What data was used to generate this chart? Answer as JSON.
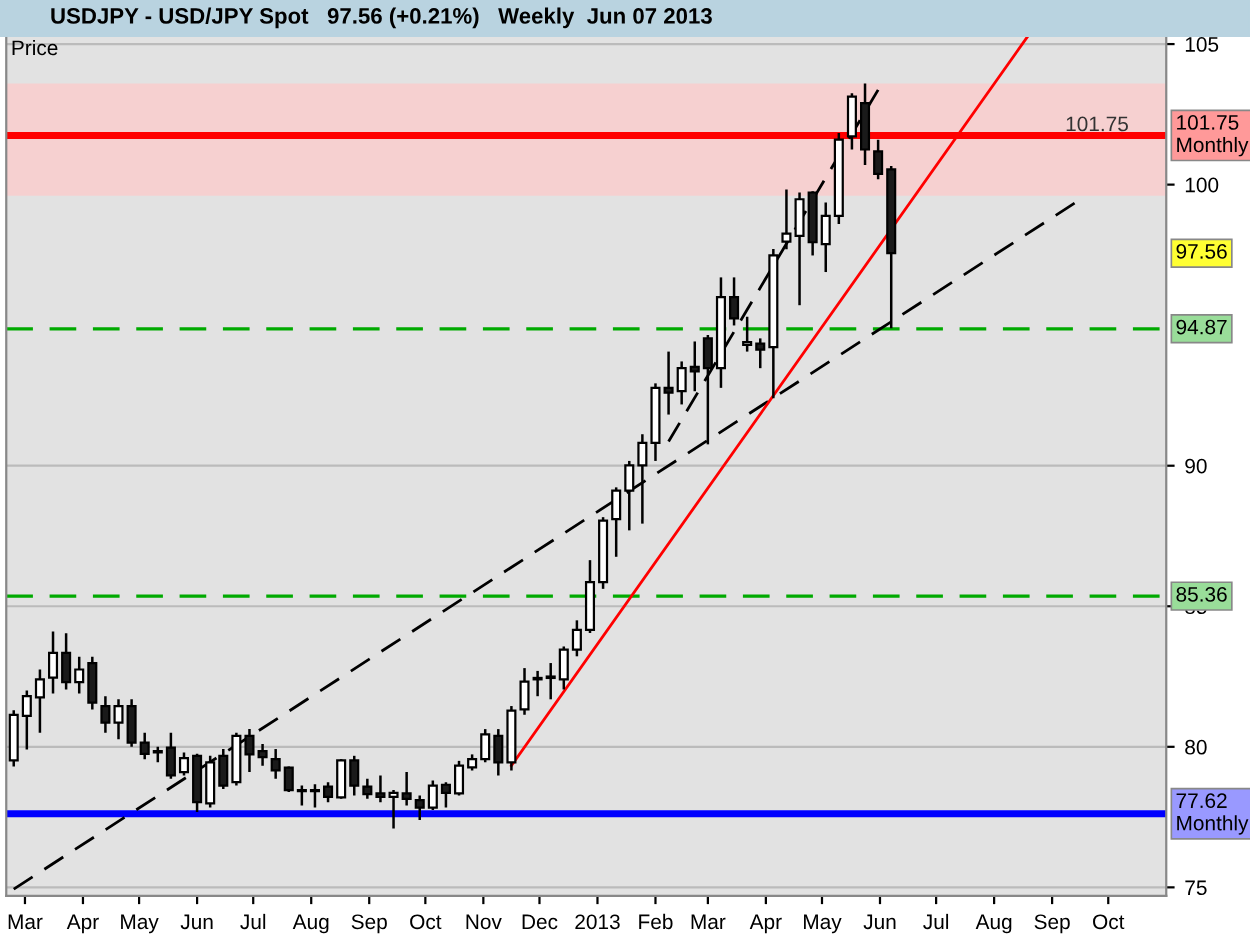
{
  "chart_data": {
    "type": "candlestick",
    "title": "USDJPY - USD/JPY Spot   97.56 (+0.21%)   Weekly  Jun 07 2013",
    "ylabel": "Price",
    "x": [
      "2012-02-24",
      "2012-03-02",
      "2012-03-09",
      "2012-03-16",
      "2012-03-23",
      "2012-03-30",
      "2012-04-06",
      "2012-04-13",
      "2012-04-20",
      "2012-04-27",
      "2012-05-04",
      "2012-05-11",
      "2012-05-18",
      "2012-05-25",
      "2012-06-01",
      "2012-06-08",
      "2012-06-15",
      "2012-06-22",
      "2012-06-29",
      "2012-07-06",
      "2012-07-13",
      "2012-07-20",
      "2012-07-27",
      "2012-08-03",
      "2012-08-10",
      "2012-08-17",
      "2012-08-24",
      "2012-08-31",
      "2012-09-07",
      "2012-09-14",
      "2012-09-21",
      "2012-09-28",
      "2012-10-05",
      "2012-10-12",
      "2012-10-19",
      "2012-10-26",
      "2012-11-02",
      "2012-11-09",
      "2012-11-16",
      "2012-11-23",
      "2012-11-30",
      "2012-12-07",
      "2012-12-14",
      "2012-12-21",
      "2012-12-28",
      "2013-01-04",
      "2013-01-11",
      "2013-01-18",
      "2013-01-25",
      "2013-02-01",
      "2013-02-08",
      "2013-02-15",
      "2013-02-22",
      "2013-03-01",
      "2013-03-08",
      "2013-03-15",
      "2013-03-22",
      "2013-03-29",
      "2013-04-05",
      "2013-04-12",
      "2013-04-19",
      "2013-04-26",
      "2013-05-03",
      "2013-05-10",
      "2013-05-17",
      "2013-05-24",
      "2013-05-31",
      "2013-06-07"
    ],
    "ohlc": [
      [
        79.52,
        81.3,
        79.3,
        81.14
      ],
      [
        81.1,
        82.0,
        79.9,
        81.8
      ],
      [
        81.76,
        82.75,
        80.5,
        82.4
      ],
      [
        82.46,
        84.1,
        81.9,
        83.34
      ],
      [
        83.34,
        84.04,
        82.04,
        82.3
      ],
      [
        82.3,
        83.2,
        81.9,
        82.75
      ],
      [
        82.98,
        83.2,
        81.33,
        81.57
      ],
      [
        81.45,
        81.8,
        80.5,
        80.86
      ],
      [
        80.86,
        81.69,
        80.27,
        81.45
      ],
      [
        81.45,
        81.69,
        80.0,
        80.15
      ],
      [
        80.15,
        80.5,
        79.56,
        79.75
      ],
      [
        79.85,
        80.0,
        79.45,
        79.8
      ],
      [
        79.97,
        80.5,
        78.86,
        78.98
      ],
      [
        79.1,
        79.8,
        78.98,
        79.6
      ],
      [
        79.68,
        79.75,
        77.68,
        78.03
      ],
      [
        77.99,
        79.68,
        77.84,
        79.45
      ],
      [
        79.68,
        79.92,
        78.5,
        78.62
      ],
      [
        78.74,
        80.5,
        78.62,
        80.39
      ],
      [
        80.39,
        80.63,
        79.1,
        79.73
      ],
      [
        79.85,
        80.1,
        79.33,
        79.63
      ],
      [
        79.56,
        79.92,
        78.86,
        79.16
      ],
      [
        79.26,
        79.3,
        78.39,
        78.46
      ],
      [
        78.46,
        78.62,
        77.91,
        78.42
      ],
      [
        78.42,
        78.67,
        77.84,
        78.46
      ],
      [
        78.58,
        78.74,
        78.03,
        78.22
      ],
      [
        78.2,
        79.56,
        78.15,
        79.52
      ],
      [
        79.52,
        79.68,
        78.27,
        78.62
      ],
      [
        78.58,
        78.86,
        78.15,
        78.32
      ],
      [
        78.34,
        78.98,
        78.03,
        78.22
      ],
      [
        78.22,
        78.46,
        77.09,
        78.36
      ],
      [
        78.34,
        79.1,
        77.91,
        78.15
      ],
      [
        78.1,
        78.27,
        77.4,
        77.84
      ],
      [
        77.84,
        78.8,
        77.75,
        78.62
      ],
      [
        78.65,
        78.74,
        77.84,
        78.36
      ],
      [
        78.34,
        79.5,
        78.27,
        79.33
      ],
      [
        79.27,
        79.73,
        79.16,
        79.56
      ],
      [
        79.56,
        80.63,
        79.45,
        80.44
      ],
      [
        80.39,
        80.63,
        78.98,
        79.45
      ],
      [
        79.45,
        81.45,
        79.16,
        81.29
      ],
      [
        81.33,
        82.8,
        81.14,
        82.32
      ],
      [
        82.4,
        82.7,
        81.8,
        82.45
      ],
      [
        82.45,
        82.98,
        81.69,
        82.5
      ],
      [
        82.4,
        83.57,
        82.04,
        83.46
      ],
      [
        83.46,
        84.5,
        83.22,
        84.16
      ],
      [
        84.16,
        86.64,
        84.05,
        85.86
      ],
      [
        85.86,
        88.17,
        85.62,
        88.05
      ],
      [
        88.1,
        89.23,
        86.76,
        89.11
      ],
      [
        89.11,
        90.17,
        87.7,
        90.01
      ],
      [
        90.01,
        91.12,
        87.94,
        90.81
      ],
      [
        90.81,
        92.93,
        90.17,
        92.77
      ],
      [
        92.77,
        94.06,
        91.82,
        92.6
      ],
      [
        92.65,
        93.71,
        92.18,
        93.47
      ],
      [
        93.52,
        94.42,
        92.65,
        93.36
      ],
      [
        94.53,
        94.65,
        90.76,
        93.47
      ],
      [
        93.47,
        96.7,
        92.77,
        96.0
      ],
      [
        96.0,
        96.7,
        94.99,
        95.24
      ],
      [
        94.3,
        95.3,
        94.06,
        94.4
      ],
      [
        94.34,
        94.53,
        93.47,
        94.13
      ],
      [
        94.22,
        97.71,
        92.4,
        97.48
      ],
      [
        97.97,
        99.83,
        97.7,
        98.26
      ],
      [
        98.18,
        99.72,
        95.71,
        99.48
      ],
      [
        99.72,
        99.76,
        97.48,
        97.95
      ],
      [
        97.88,
        99.36,
        96.89,
        98.89
      ],
      [
        98.89,
        101.84,
        98.6,
        101.6
      ],
      [
        101.72,
        103.25,
        101.25,
        103.13
      ],
      [
        102.9,
        103.6,
        100.7,
        101.25
      ],
      [
        101.18,
        101.6,
        100.19,
        100.38
      ],
      [
        100.54,
        100.66,
        94.89,
        97.56
      ]
    ],
    "series": [
      {
        "type": "line",
        "x": [
          "2012-02-24",
          "2013-09-13"
        ],
        "values": [
          74.94,
          99.34
        ],
        "color": "#000000",
        "line_style": "dashed"
      },
      {
        "type": "line",
        "x": [
          "2013-02-08",
          "2013-05-31"
        ],
        "values": [
          90.86,
          103.37
        ],
        "color": "#000000",
        "line_style": "dashed"
      },
      {
        "type": "line",
        "x": [
          "2012-11-16",
          "2013-08-19"
        ],
        "values": [
          79.33,
          105.28
        ],
        "color": "#ff0000",
        "line_style": "solid"
      }
    ],
    "ref_lines": [
      {
        "axis": "y",
        "value": 101.75,
        "label": "101.75 Monthly",
        "color": "#ff0000",
        "line_style": "solid"
      },
      {
        "axis": "y",
        "value": 94.87,
        "label": "94.87",
        "color": "#00aa00",
        "line_style": "dashed"
      },
      {
        "axis": "y",
        "value": 85.36,
        "label": "85.36",
        "color": "#00aa00",
        "line_style": "dashed"
      },
      {
        "axis": "y",
        "value": 77.62,
        "label": "77.62 Monthly",
        "color": "#0000ff",
        "line_style": "solid"
      }
    ],
    "bands": [
      {
        "axis": "y",
        "from": 99.6,
        "to": 103.6,
        "color": "#f6d0d0"
      }
    ],
    "annotations": [
      {
        "text": "101.75",
        "x": "2013-10-12",
        "y": 101.75
      },
      "97.56"
    ],
    "xlim": [
      "2012-02-20",
      "2013-11-01"
    ],
    "ylim": [
      74.7,
      105.3
    ],
    "xticks": [
      {
        "value": "2012-03-01",
        "label": "Mar"
      },
      {
        "value": "2012-04-01",
        "label": "Apr"
      },
      {
        "value": "2012-05-01",
        "label": "May"
      },
      {
        "value": "2012-06-01",
        "label": "Jun"
      },
      {
        "value": "2012-07-01",
        "label": "Jul"
      },
      {
        "value": "2012-08-01",
        "label": "Aug"
      },
      {
        "value": "2012-09-01",
        "label": "Sep"
      },
      {
        "value": "2012-10-01",
        "label": "Oct"
      },
      {
        "value": "2012-11-01",
        "label": "Nov"
      },
      {
        "value": "2012-12-01",
        "label": "Dec"
      },
      {
        "value": "2013-01-01",
        "label": "2013"
      },
      {
        "value": "2013-02-01",
        "label": "Feb"
      },
      {
        "value": "2013-03-01",
        "label": "Mar"
      },
      {
        "value": "2013-04-01",
        "label": "Apr"
      },
      {
        "value": "2013-05-01",
        "label": "May"
      },
      {
        "value": "2013-06-01",
        "label": "Jun"
      },
      {
        "value": "2013-07-01",
        "label": "Jul"
      },
      {
        "value": "2013-08-01",
        "label": "Aug"
      },
      {
        "value": "2013-09-01",
        "label": "Sep"
      },
      {
        "value": "2013-10-01",
        "label": "Oct"
      }
    ],
    "yticks": [
      75,
      80,
      85,
      90,
      100,
      105
    ],
    "grid": "y"
  }
}
